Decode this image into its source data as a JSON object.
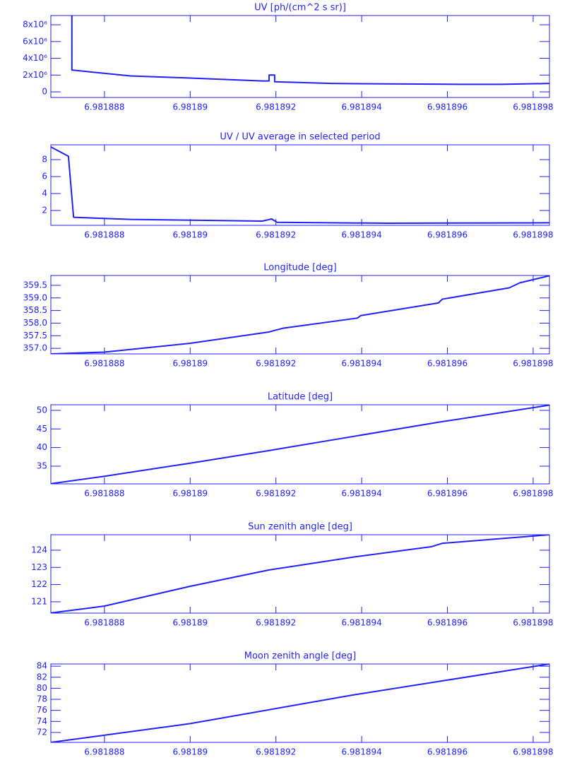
{
  "chart_data": [
    {
      "type": "line",
      "title": "UV [ph/(cm^2 s sr)]",
      "color": "#1f1fff",
      "x": [
        6.98188724,
        6.98188724,
        6.98188861,
        6.98189,
        6.98189168,
        6.98189184,
        6.98189184,
        6.98189197,
        6.98189197,
        6.9818933,
        6.98189462,
        6.98189626,
        6.98189725,
        6.98189837
      ],
      "values": [
        9100000,
        2600000,
        1900000,
        1650000,
        1300000,
        1300000,
        2000000,
        2000000,
        1200000,
        1000000,
        950000,
        900000,
        900000,
        1000000
      ],
      "xlim": [
        6.98188675,
        6.98189838
      ],
      "xticks": [
        6.981888,
        6.98189,
        6.981892,
        6.981894,
        6.981896,
        6.981898
      ],
      "ylim": [
        -670000,
        9100000
      ],
      "yticks": [
        0,
        {
          "value": 2000000,
          "label": "2x10⁶"
        },
        {
          "value": 4000000,
          "label": "4x10⁶"
        },
        {
          "value": 6000000,
          "label": "6x10⁶"
        },
        {
          "value": 8000000,
          "label": "8x10⁶"
        }
      ]
    },
    {
      "type": "line",
      "title": "UV / UV average in selected period",
      "color": "#1f1fff",
      "x": [
        6.98188675,
        6.98188716,
        6.98188728,
        6.98188861,
        6.98189168,
        6.9818919,
        6.98189203,
        6.98189462,
        6.98189837
      ],
      "values": [
        9.5,
        8.4,
        1.2,
        0.95,
        0.75,
        1.0,
        0.6,
        0.5,
        0.55
      ],
      "xlim": [
        6.98188675,
        6.98189838
      ],
      "xticks": [
        6.981888,
        6.98189,
        6.981892,
        6.981894,
        6.981896,
        6.981898
      ],
      "ylim": [
        0.25,
        9.75
      ],
      "yticks": [
        2,
        4,
        6,
        8
      ]
    },
    {
      "type": "line",
      "title": "Longitude [deg]",
      "color": "#1f1fff",
      "x": [
        6.98188675,
        6.981888,
        6.98189,
        6.98189184,
        6.98189217,
        6.9818939,
        6.98189398,
        6.98189579,
        6.98189588,
        6.98189744,
        6.98189769,
        6.98189838
      ],
      "values": [
        356.78,
        356.85,
        357.2,
        357.65,
        357.8,
        358.2,
        358.3,
        358.8,
        358.95,
        359.4,
        359.6,
        359.88
      ],
      "xlim": [
        6.98188675,
        6.98189838
      ],
      "xticks": [
        6.981888,
        6.98189,
        6.981892,
        6.981894,
        6.981896,
        6.981898
      ],
      "ylim": [
        356.78,
        359.89
      ],
      "yticks": [
        {
          "value": 357,
          "label": "357.0"
        },
        357.5,
        {
          "value": 358,
          "label": "358.0"
        },
        358.5,
        {
          "value": 359,
          "label": "359.0"
        },
        359.5
      ]
    },
    {
      "type": "line",
      "title": "Latitude [deg]",
      "color": "#1f1fff",
      "x": [
        6.98188675,
        6.981888,
        6.98189,
        6.98189184,
        6.98189381,
        6.98189579,
        6.98189838
      ],
      "values": [
        30.3,
        32.3,
        35.8,
        39.2,
        43,
        46.8,
        51.4
      ],
      "xlim": [
        6.98188675,
        6.98189838
      ],
      "xticks": [
        6.981888,
        6.98189,
        6.981892,
        6.981894,
        6.981896,
        6.981898
      ],
      "ylim": [
        30.25,
        51.5
      ],
      "yticks": [
        35,
        40,
        45,
        50
      ]
    },
    {
      "type": "line",
      "title": "Sun zenith angle [deg]",
      "color": "#1f1fff",
      "x": [
        6.98188675,
        6.981888,
        6.98189,
        6.98189184,
        6.98189381,
        6.98189562,
        6.98189588,
        6.98189838
      ],
      "values": [
        120.35,
        120.75,
        121.9,
        122.85,
        123.6,
        124.2,
        124.4,
        124.9
      ],
      "xlim": [
        6.98188675,
        6.98189838
      ],
      "xticks": [
        6.981888,
        6.98189,
        6.981892,
        6.981894,
        6.981896,
        6.981898
      ],
      "ylim": [
        120.34,
        124.9
      ],
      "yticks": [
        121,
        122,
        123,
        124
      ]
    },
    {
      "type": "line",
      "title": "Moon zenith angle [deg]",
      "color": "#1f1fff",
      "x": [
        6.98188675,
        6.98189,
        6.98189381,
        6.98189838
      ],
      "values": [
        70.2,
        73.6,
        78.8,
        84.4
      ],
      "xlim": [
        6.98188675,
        6.98189838
      ],
      "xticks": [
        6.981888,
        6.98189,
        6.981892,
        6.981894,
        6.981896,
        6.981898
      ],
      "ylim": [
        70.2,
        84.4
      ],
      "yticks": [
        72,
        74,
        76,
        78,
        80,
        82,
        84
      ]
    }
  ]
}
